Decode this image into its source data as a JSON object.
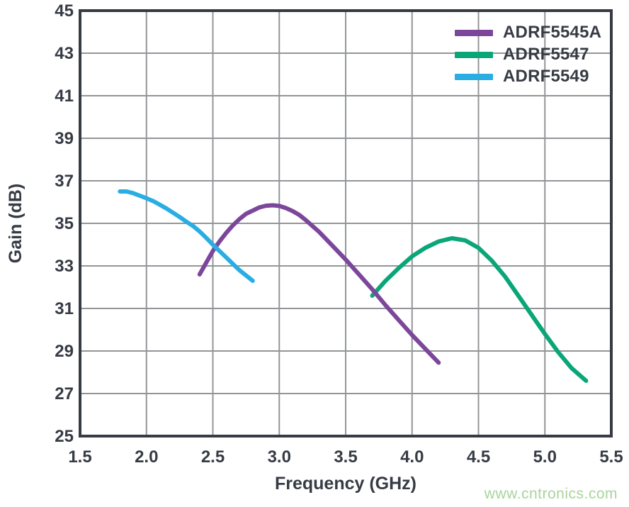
{
  "watermark": "www.cntronics.com",
  "colors": {
    "axis": "#363B44",
    "grid": "#939598",
    "background": "#ffffff",
    "watermark": "#A8D49B"
  },
  "chart_data": {
    "type": "line",
    "title": "",
    "xlabel": "Frequency (GHz)",
    "ylabel": "Gain (dB)",
    "xlim": [
      1.5,
      5.5
    ],
    "ylim": [
      25,
      45
    ],
    "grid": true,
    "legend_position": "top-right",
    "xticks": [
      1.5,
      2.0,
      2.5,
      3.0,
      3.5,
      4.0,
      4.5,
      5.0,
      5.5
    ],
    "xtick_labels": [
      "1.5",
      "2.0",
      "2.5",
      "3.0",
      "3.5",
      "4.0",
      "4.5",
      "5.0",
      "5.5"
    ],
    "yticks": [
      25,
      27,
      29,
      31,
      33,
      35,
      37,
      39,
      41,
      43,
      45
    ],
    "ytick_labels": [
      "25",
      "27",
      "29",
      "31",
      "33",
      "35",
      "37",
      "39",
      "41",
      "43",
      "45"
    ],
    "draw_order": [
      1,
      0,
      2
    ],
    "series": [
      {
        "name": "ADRF5545A",
        "color": "#7C479B",
        "x": [
          2.4,
          2.45,
          2.5,
          2.55,
          2.6,
          2.65,
          2.7,
          2.75,
          2.8,
          2.85,
          2.9,
          2.95,
          3.0,
          3.05,
          3.1,
          3.15,
          3.2,
          3.3,
          3.4,
          3.5,
          3.6,
          3.7,
          3.8,
          3.9,
          4.0,
          4.1,
          4.2
        ],
        "y": [
          32.6,
          33.15,
          33.7,
          34.15,
          34.55,
          34.9,
          35.2,
          35.45,
          35.6,
          35.75,
          35.83,
          35.85,
          35.82,
          35.72,
          35.58,
          35.4,
          35.15,
          34.6,
          33.95,
          33.3,
          32.6,
          31.9,
          31.15,
          30.45,
          29.75,
          29.1,
          28.45
        ]
      },
      {
        "name": "ADRF5547",
        "color": "#0AA678",
        "x": [
          3.7,
          3.75,
          3.8,
          3.9,
          4.0,
          4.1,
          4.2,
          4.3,
          4.4,
          4.5,
          4.6,
          4.7,
          4.8,
          4.9,
          5.0,
          5.1,
          5.2,
          5.31
        ],
        "y": [
          31.6,
          31.95,
          32.3,
          32.9,
          33.45,
          33.85,
          34.15,
          34.3,
          34.2,
          33.85,
          33.25,
          32.5,
          31.6,
          30.7,
          29.8,
          28.95,
          28.2,
          27.6
        ]
      },
      {
        "name": "ADRF5549",
        "color": "#29ADE3",
        "x": [
          1.8,
          1.85,
          1.9,
          1.95,
          2.0,
          2.05,
          2.1,
          2.15,
          2.2,
          2.25,
          2.3,
          2.35,
          2.4,
          2.45,
          2.5,
          2.55,
          2.6,
          2.65,
          2.7,
          2.75,
          2.8
        ],
        "y": [
          36.5,
          36.5,
          36.42,
          36.3,
          36.18,
          36.05,
          35.88,
          35.7,
          35.5,
          35.3,
          35.08,
          34.88,
          34.62,
          34.32,
          34.0,
          33.7,
          33.4,
          33.1,
          32.8,
          32.55,
          32.3
        ]
      }
    ]
  }
}
